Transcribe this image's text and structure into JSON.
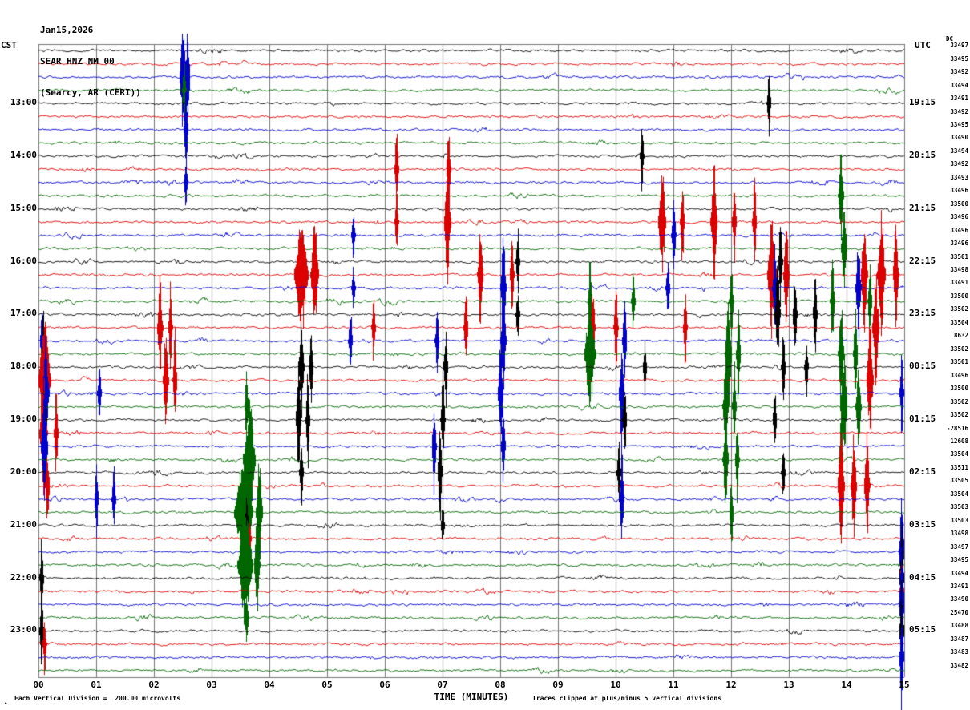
{
  "header": {
    "date": "Jan15,2026",
    "station": "SEAR HNZ NM 00",
    "location": "(Searcy, AR (CERI))"
  },
  "axes": {
    "left_label": "CST",
    "right_label": "UTC",
    "dc_label": "DC",
    "xlabel": "TIME (MINUTES)",
    "x_ticks": [
      "00",
      "01",
      "02",
      "03",
      "04",
      "05",
      "06",
      "07",
      "08",
      "09",
      "10",
      "11",
      "12",
      "13",
      "14",
      "15"
    ]
  },
  "footer": {
    "scale_note": "Each Vertical Division =  200.00 microvolts",
    "clip_note": "Traces clipped at plus/minus 5 vertical divisions",
    "marker": "^"
  },
  "chart_data": {
    "type": "line",
    "title": "SEAR HNZ NM 00 (Searcy, AR (CERI)) Jan15,2026",
    "xlabel": "TIME (MINUTES)",
    "x_range_minutes": [
      0,
      15
    ],
    "minutes_per_line": 15,
    "clip_divisions": 5,
    "microvolts_per_division": 200.0,
    "colors": {
      "black": "#000000",
      "red": "#dd0000",
      "blue": "#0000cc",
      "green": "#006600"
    },
    "rows": [
      {
        "color": "black",
        "dc": "33497"
      },
      {
        "color": "red",
        "dc": "33495"
      },
      {
        "color": "blue",
        "dc": "33492",
        "events": [
          [
            2.5,
            82,
            0.1
          ],
          [
            2.58,
            78,
            0.06
          ]
        ]
      },
      {
        "color": "green",
        "dc": "33494",
        "events": [
          [
            2.52,
            40,
            0.05
          ]
        ]
      },
      {
        "color": "black",
        "cst": "13:00",
        "utc": "19:15",
        "dc": "33491",
        "events": [
          [
            12.65,
            42,
            0.05
          ]
        ]
      },
      {
        "color": "red",
        "dc": "33492"
      },
      {
        "color": "blue",
        "dc": "33495",
        "events": [
          [
            2.55,
            60,
            0.06
          ]
        ]
      },
      {
        "color": "green",
        "dc": "33490"
      },
      {
        "color": "black",
        "cst": "14:00",
        "utc": "20:15",
        "dc": "33494",
        "events": [
          [
            10.45,
            48,
            0.05
          ]
        ]
      },
      {
        "color": "red",
        "dc": "33492",
        "events": [
          [
            6.2,
            58,
            0.06
          ],
          [
            7.1,
            65,
            0.06
          ]
        ]
      },
      {
        "color": "blue",
        "dc": "33493",
        "events": [
          [
            2.55,
            35,
            0.05
          ]
        ]
      },
      {
        "color": "green",
        "dc": "33496",
        "events": [
          [
            13.9,
            62,
            0.08
          ]
        ]
      },
      {
        "color": "black",
        "cst": "15:00",
        "utc": "21:15",
        "dc": "33500"
      },
      {
        "color": "red",
        "dc": "33496",
        "events": [
          [
            6.2,
            40,
            0.05
          ],
          [
            7.08,
            80,
            0.1
          ],
          [
            10.8,
            70,
            0.12
          ],
          [
            11.15,
            60,
            0.06
          ],
          [
            11.7,
            76,
            0.1
          ],
          [
            12.05,
            55,
            0.06
          ],
          [
            12.4,
            60,
            0.06
          ]
        ]
      },
      {
        "color": "blue",
        "dc": "33496",
        "events": [
          [
            5.45,
            30,
            0.05
          ],
          [
            11.0,
            60,
            0.06
          ]
        ]
      },
      {
        "color": "green",
        "dc": "33496",
        "events": [
          [
            13.95,
            68,
            0.08
          ]
        ]
      },
      {
        "color": "black",
        "cst": "16:00",
        "utc": "22:15",
        "dc": "33501",
        "events": [
          [
            8.3,
            50,
            0.05
          ],
          [
            12.85,
            58,
            0.06
          ]
        ]
      },
      {
        "color": "red",
        "dc": "33498",
        "events": [
          [
            4.55,
            82,
            0.22
          ],
          [
            4.78,
            80,
            0.12
          ],
          [
            7.65,
            70,
            0.08
          ],
          [
            8.2,
            58,
            0.06
          ],
          [
            12.7,
            82,
            0.14
          ],
          [
            12.95,
            75,
            0.08
          ],
          [
            14.3,
            80,
            0.1
          ],
          [
            14.6,
            82,
            0.12
          ],
          [
            14.85,
            80,
            0.08
          ]
        ]
      },
      {
        "color": "blue",
        "dc": "33491",
        "events": [
          [
            5.45,
            28,
            0.04
          ],
          [
            8.05,
            74,
            0.08
          ],
          [
            10.9,
            42,
            0.05
          ],
          [
            12.75,
            58,
            0.06
          ],
          [
            14.2,
            68,
            0.08
          ]
        ]
      },
      {
        "color": "green",
        "dc": "33500",
        "events": [
          [
            9.55,
            55,
            0.06
          ],
          [
            10.3,
            40,
            0.05
          ],
          [
            12.0,
            50,
            0.06
          ],
          [
            13.75,
            60,
            0.06
          ],
          [
            14.4,
            50,
            0.06
          ]
        ]
      },
      {
        "color": "black",
        "cst": "17:00",
        "utc": "23:15",
        "dc": "33502",
        "events": [
          [
            8.3,
            38,
            0.04
          ],
          [
            12.8,
            70,
            0.08
          ],
          [
            13.1,
            64,
            0.06
          ],
          [
            13.45,
            58,
            0.06
          ]
        ]
      },
      {
        "color": "red",
        "dc": "33504",
        "events": [
          [
            2.1,
            70,
            0.08
          ],
          [
            2.28,
            62,
            0.05
          ],
          [
            5.8,
            48,
            0.05
          ],
          [
            7.4,
            58,
            0.06
          ],
          [
            9.6,
            64,
            0.06
          ],
          [
            10.0,
            58,
            0.06
          ],
          [
            11.2,
            52,
            0.05
          ],
          [
            14.5,
            80,
            0.1
          ]
        ]
      },
      {
        "color": "blue",
        "dc": "8632",
        "events": [
          [
            0.06,
            58,
            0.05
          ],
          [
            5.4,
            52,
            0.05
          ],
          [
            6.9,
            48,
            0.05
          ],
          [
            8.05,
            70,
            0.08
          ],
          [
            10.15,
            64,
            0.06
          ]
        ]
      },
      {
        "color": "green",
        "dc": "33502",
        "events": [
          [
            9.55,
            74,
            0.18
          ],
          [
            11.95,
            80,
            0.1
          ],
          [
            12.12,
            68,
            0.06
          ],
          [
            13.9,
            74,
            0.08
          ],
          [
            14.15,
            68,
            0.06
          ]
        ]
      },
      {
        "color": "black",
        "cst": "18:00",
        "utc": "00:15",
        "dc": "33501",
        "events": [
          [
            0.08,
            78,
            0.08
          ],
          [
            4.55,
            70,
            0.08
          ],
          [
            4.72,
            62,
            0.05
          ],
          [
            7.05,
            58,
            0.06
          ],
          [
            10.5,
            40,
            0.04
          ],
          [
            12.9,
            50,
            0.05
          ],
          [
            13.3,
            44,
            0.05
          ]
        ]
      },
      {
        "color": "red",
        "dc": "33496",
        "events": [
          [
            0.1,
            82,
            0.2
          ],
          [
            2.2,
            78,
            0.08
          ],
          [
            2.36,
            68,
            0.05
          ],
          [
            14.4,
            80,
            0.1
          ]
        ]
      },
      {
        "color": "blue",
        "dc": "33500",
        "events": [
          [
            0.12,
            80,
            0.1
          ],
          [
            1.05,
            40,
            0.04
          ],
          [
            8.0,
            74,
            0.08
          ],
          [
            10.1,
            70,
            0.08
          ],
          [
            14.95,
            58,
            0.05
          ]
        ]
      },
      {
        "color": "green",
        "dc": "33502",
        "events": [
          [
            3.6,
            50,
            0.05
          ],
          [
            11.9,
            74,
            0.08
          ],
          [
            12.05,
            66,
            0.05
          ],
          [
            13.95,
            80,
            0.1
          ],
          [
            14.2,
            72,
            0.08
          ]
        ]
      },
      {
        "color": "black",
        "cst": "19:00",
        "utc": "01:15",
        "dc": "33502",
        "events": [
          [
            0.1,
            58,
            0.06
          ],
          [
            4.5,
            74,
            0.08
          ],
          [
            4.66,
            66,
            0.05
          ],
          [
            7.0,
            62,
            0.06
          ],
          [
            10.15,
            54,
            0.05
          ],
          [
            12.75,
            48,
            0.05
          ]
        ]
      },
      {
        "color": "red",
        "dc": "-28516",
        "events": [
          [
            0.08,
            82,
            0.12
          ],
          [
            0.3,
            60,
            0.06
          ]
        ]
      },
      {
        "color": "blue",
        "dc": "12608",
        "events": [
          [
            0.1,
            82,
            0.1
          ],
          [
            6.85,
            68,
            0.06
          ],
          [
            8.05,
            58,
            0.06
          ]
        ]
      },
      {
        "color": "green",
        "dc": "33504",
        "events": [
          [
            3.65,
            80,
            0.2
          ],
          [
            11.9,
            68,
            0.08
          ],
          [
            12.1,
            62,
            0.05
          ],
          [
            13.9,
            58,
            0.06
          ]
        ]
      },
      {
        "color": "black",
        "cst": "20:00",
        "utc": "02:15",
        "dc": "33511",
        "events": [
          [
            4.55,
            48,
            0.05
          ],
          [
            6.95,
            78,
            0.06
          ],
          [
            10.05,
            44,
            0.04
          ],
          [
            12.9,
            40,
            0.04
          ]
        ]
      },
      {
        "color": "red",
        "dc": "33505",
        "events": [
          [
            0.15,
            58,
            0.06
          ],
          [
            13.9,
            80,
            0.1
          ],
          [
            14.12,
            76,
            0.08
          ],
          [
            14.35,
            72,
            0.08
          ]
        ]
      },
      {
        "color": "blue",
        "dc": "33504",
        "events": [
          [
            1.0,
            54,
            0.05
          ],
          [
            1.3,
            48,
            0.04
          ],
          [
            10.1,
            68,
            0.06
          ]
        ]
      },
      {
        "color": "green",
        "dc": "33503",
        "events": [
          [
            3.55,
            82,
            0.3
          ],
          [
            3.82,
            78,
            0.1
          ],
          [
            12.0,
            52,
            0.05
          ]
        ]
      },
      {
        "color": "black",
        "cst": "21:00",
        "utc": "03:15",
        "dc": "33503",
        "events": [
          [
            3.6,
            38,
            0.04
          ],
          [
            7.0,
            28,
            0.04
          ]
        ]
      },
      {
        "color": "red",
        "dc": "33498",
        "events": [
          [
            3.65,
            28,
            0.04
          ]
        ]
      },
      {
        "color": "blue",
        "dc": "33497",
        "events": [
          [
            14.95,
            82,
            0.07
          ]
        ]
      },
      {
        "color": "green",
        "dc": "33495",
        "events": [
          [
            3.58,
            82,
            0.25
          ],
          [
            3.78,
            78,
            0.08
          ]
        ]
      },
      {
        "color": "black",
        "cst": "22:00",
        "utc": "04:15",
        "dc": "33494",
        "events": [
          [
            0.05,
            58,
            0.05
          ],
          [
            14.95,
            78,
            0.06
          ]
        ]
      },
      {
        "color": "red",
        "dc": "33491",
        "events": [
          [
            14.95,
            58,
            0.05
          ]
        ]
      },
      {
        "color": "blue",
        "dc": "33490",
        "events": [
          [
            14.95,
            82,
            0.07
          ]
        ]
      },
      {
        "color": "green",
        "dc": "25470",
        "events": [
          [
            3.6,
            38,
            0.04
          ]
        ]
      },
      {
        "color": "black",
        "cst": "23:00",
        "utc": "05:15",
        "dc": "33488",
        "events": [
          [
            0.05,
            68,
            0.05
          ],
          [
            14.95,
            70,
            0.06
          ]
        ]
      },
      {
        "color": "red",
        "dc": "33487",
        "events": [
          [
            0.1,
            40,
            0.04
          ]
        ]
      },
      {
        "color": "blue",
        "dc": "33483",
        "events": [
          [
            14.95,
            74,
            0.06
          ]
        ]
      },
      {
        "color": "green",
        "dc": "33482"
      }
    ]
  }
}
